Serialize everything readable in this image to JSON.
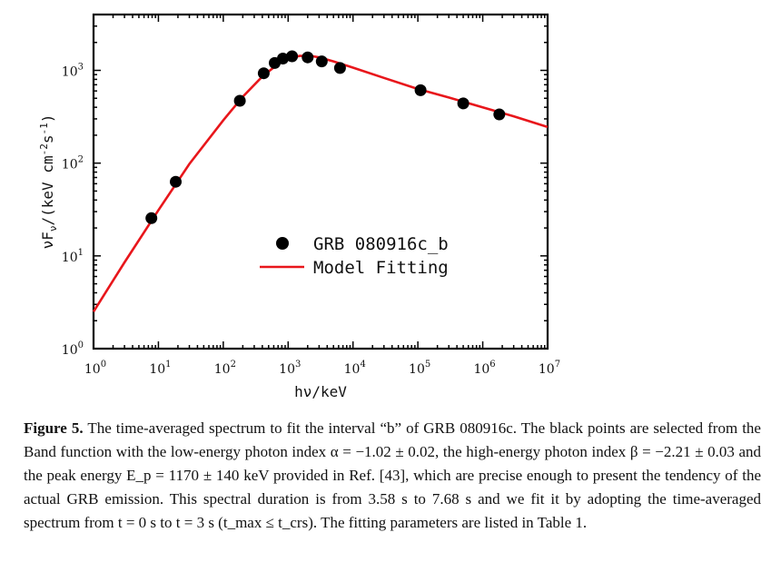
{
  "chart_data": {
    "type": "scatter",
    "xlabel": "hν/keV",
    "ylabel": "νF_ν/(keV cm^-2 s^-1)",
    "xscale": "log",
    "yscale": "log",
    "xlim": [
      1,
      10000000
    ],
    "ylim": [
      1,
      4000
    ],
    "x_ticks": [
      {
        "base": "10",
        "exp": "0",
        "value": 1
      },
      {
        "base": "10",
        "exp": "1",
        "value": 10
      },
      {
        "base": "10",
        "exp": "2",
        "value": 100
      },
      {
        "base": "10",
        "exp": "3",
        "value": 1000
      },
      {
        "base": "10",
        "exp": "4",
        "value": 10000
      },
      {
        "base": "10",
        "exp": "5",
        "value": 100000
      },
      {
        "base": "10",
        "exp": "6",
        "value": 1000000
      },
      {
        "base": "10",
        "exp": "7",
        "value": 10000000
      }
    ],
    "y_ticks": [
      {
        "base": "10",
        "exp": "0",
        "value": 1
      },
      {
        "base": "10",
        "exp": "1",
        "value": 10
      },
      {
        "base": "10",
        "exp": "2",
        "value": 100
      },
      {
        "base": "10",
        "exp": "3",
        "value": 1000
      }
    ],
    "legend_position": "center-right",
    "series": [
      {
        "name": "GRB 080916c_b",
        "kind": "scatter",
        "color": "#000000",
        "x": [
          7.8,
          18.5,
          180,
          420,
          620,
          830,
          1150,
          2000,
          3300,
          6300,
          110000,
          500000,
          1800000
        ],
        "y": [
          25.5,
          63,
          470,
          930,
          1200,
          1340,
          1420,
          1380,
          1250,
          1060,
          610,
          440,
          335
        ]
      },
      {
        "name": "Model Fitting",
        "kind": "line",
        "color": "#e8161b",
        "x": [
          1,
          3,
          10,
          30,
          100,
          200,
          400,
          700,
          1000,
          1500,
          2200,
          3000,
          5000,
          10000,
          30000,
          100000,
          300000,
          1000000,
          3000000,
          10000000
        ],
        "y": [
          2.5,
          8.5,
          31,
          98,
          290,
          520,
          860,
          1170,
          1340,
          1430,
          1435,
          1380,
          1250,
          1070,
          830,
          630,
          510,
          400,
          320,
          245
        ]
      }
    ]
  },
  "caption": {
    "label": "Figure 5.",
    "text": " The time-averaged spectrum to fit the interval “b” of GRB 080916c. The black points are selected from the Band function with the low-energy photon index α = −1.02 ± 0.02, the high-energy photon index β = −2.21 ± 0.03 and the peak energy E_p = 1170 ± 140 keV provided in Ref. [43], which are precise enough to present the tendency of the actual GRB emission. This spectral duration is from 3.58 s to 7.68 s and we fit it by adopting the time-averaged spectrum from t = 0 s to t = 3 s (t_max ≤ t_crs). The fitting parameters are listed in Table 1."
  }
}
